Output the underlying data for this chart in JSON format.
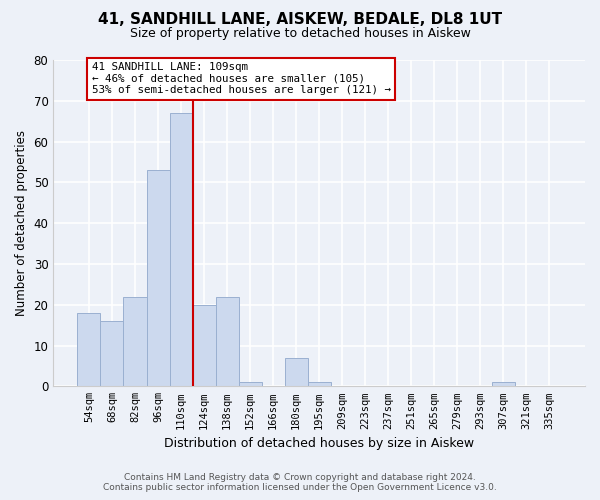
{
  "title": "41, SANDHILL LANE, AISKEW, BEDALE, DL8 1UT",
  "subtitle": "Size of property relative to detached houses in Aiskew",
  "xlabel": "Distribution of detached houses by size in Aiskew",
  "ylabel": "Number of detached properties",
  "footer_line1": "Contains HM Land Registry data © Crown copyright and database right 2024.",
  "footer_line2": "Contains public sector information licensed under the Open Government Licence v3.0.",
  "bin_labels": [
    "54sqm",
    "68sqm",
    "82sqm",
    "96sqm",
    "110sqm",
    "124sqm",
    "138sqm",
    "152sqm",
    "166sqm",
    "180sqm",
    "195sqm",
    "209sqm",
    "223sqm",
    "237sqm",
    "251sqm",
    "265sqm",
    "279sqm",
    "293sqm",
    "307sqm",
    "321sqm",
    "335sqm"
  ],
  "bar_values": [
    18,
    16,
    22,
    53,
    67,
    20,
    22,
    1,
    0,
    7,
    1,
    0,
    0,
    0,
    0,
    0,
    0,
    0,
    1,
    0,
    0
  ],
  "bar_color": "#ccd9ee",
  "bar_edge_color": "#9ab0d0",
  "vline_color": "#cc0000",
  "ylim": [
    0,
    80
  ],
  "yticks": [
    0,
    10,
    20,
    30,
    40,
    50,
    60,
    70,
    80
  ],
  "annotation_line1": "41 SANDHILL LANE: 109sqm",
  "annotation_line2": "← 46% of detached houses are smaller (105)",
  "annotation_line3": "53% of semi-detached houses are larger (121) →",
  "annotation_box_color": "white",
  "annotation_box_edge_color": "#cc0000",
  "bg_color": "#edf1f8",
  "grid_color": "#ffffff",
  "title_fontsize": 11,
  "subtitle_fontsize": 9
}
